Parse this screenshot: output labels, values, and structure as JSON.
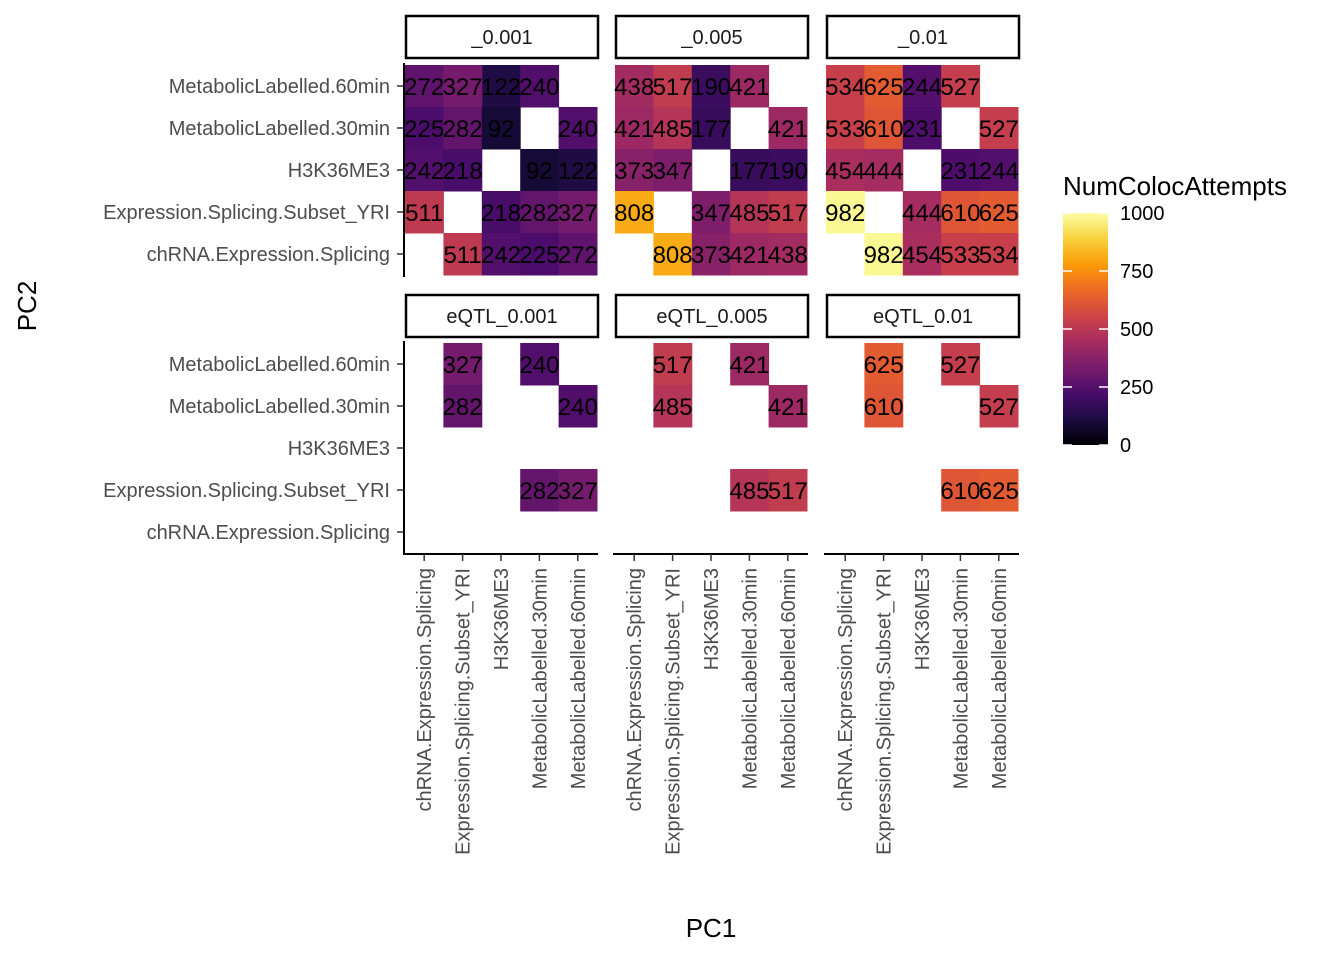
{
  "chart_data": {
    "type": "heatmap",
    "xlabel": "PC1",
    "ylabel": "PC2",
    "categories": [
      "chRNA.Expression.Splicing",
      "Expression.Splicing.Subset_YRI",
      "H3K36ME3",
      "MetabolicLabelled.30min",
      "MetabolicLabelled.60min"
    ],
    "facet_layout": {
      "rows": 2,
      "cols": 3
    },
    "facets": [
      {
        "label": "_0.001",
        "cells": [
          {
            "x": "H3K36ME3",
            "y": "MetabolicLabelled.60min",
            "value": 122
          },
          {
            "x": "MetabolicLabelled.30min",
            "y": "MetabolicLabelled.60min",
            "value": 240
          },
          {
            "x": "chRNA.Expression.Splicing",
            "y": "MetabolicLabelled.60min",
            "value": 272
          },
          {
            "x": "Expression.Splicing.Subset_YRI",
            "y": "MetabolicLabelled.60min",
            "value": 327
          },
          {
            "x": "chRNA.Expression.Splicing",
            "y": "MetabolicLabelled.30min",
            "value": 225
          },
          {
            "x": "Expression.Splicing.Subset_YRI",
            "y": "MetabolicLabelled.30min",
            "value": 282
          },
          {
            "x": "H3K36ME3",
            "y": "MetabolicLabelled.30min",
            "value": 92
          },
          {
            "x": "MetabolicLabelled.60min",
            "y": "MetabolicLabelled.30min",
            "value": 240
          },
          {
            "x": "chRNA.Expression.Splicing",
            "y": "H3K36ME3",
            "value": 242
          },
          {
            "x": "Expression.Splicing.Subset_YRI",
            "y": "H3K36ME3",
            "value": 218
          },
          {
            "x": "MetabolicLabelled.30min",
            "y": "H3K36ME3",
            "value": 92
          },
          {
            "x": "MetabolicLabelled.60min",
            "y": "H3K36ME3",
            "value": 122
          },
          {
            "x": "chRNA.Expression.Splicing",
            "y": "Expression.Splicing.Subset_YRI",
            "value": 511
          },
          {
            "x": "H3K36ME3",
            "y": "Expression.Splicing.Subset_YRI",
            "value": 218
          },
          {
            "x": "MetabolicLabelled.30min",
            "y": "Expression.Splicing.Subset_YRI",
            "value": 282
          },
          {
            "x": "MetabolicLabelled.60min",
            "y": "Expression.Splicing.Subset_YRI",
            "value": 327
          },
          {
            "x": "Expression.Splicing.Subset_YRI",
            "y": "chRNA.Expression.Splicing",
            "value": 511
          },
          {
            "x": "H3K36ME3",
            "y": "chRNA.Expression.Splicing",
            "value": 242
          },
          {
            "x": "MetabolicLabelled.30min",
            "y": "chRNA.Expression.Splicing",
            "value": 225
          },
          {
            "x": "MetabolicLabelled.60min",
            "y": "chRNA.Expression.Splicing",
            "value": 272
          }
        ]
      },
      {
        "label": "_0.005",
        "cells": [
          {
            "x": "chRNA.Expression.Splicing",
            "y": "MetabolicLabelled.60min",
            "value": 438
          },
          {
            "x": "Expression.Splicing.Subset_YRI",
            "y": "MetabolicLabelled.60min",
            "value": 517
          },
          {
            "x": "H3K36ME3",
            "y": "MetabolicLabelled.60min",
            "value": 190
          },
          {
            "x": "MetabolicLabelled.30min",
            "y": "MetabolicLabelled.60min",
            "value": 421
          },
          {
            "x": "chRNA.Expression.Splicing",
            "y": "MetabolicLabelled.30min",
            "value": 421
          },
          {
            "x": "Expression.Splicing.Subset_YRI",
            "y": "MetabolicLabelled.30min",
            "value": 485
          },
          {
            "x": "H3K36ME3",
            "y": "MetabolicLabelled.30min",
            "value": 177
          },
          {
            "x": "MetabolicLabelled.60min",
            "y": "MetabolicLabelled.30min",
            "value": 421
          },
          {
            "x": "chRNA.Expression.Splicing",
            "y": "H3K36ME3",
            "value": 373
          },
          {
            "x": "Expression.Splicing.Subset_YRI",
            "y": "H3K36ME3",
            "value": 347
          },
          {
            "x": "MetabolicLabelled.30min",
            "y": "H3K36ME3",
            "value": 177
          },
          {
            "x": "MetabolicLabelled.60min",
            "y": "H3K36ME3",
            "value": 190
          },
          {
            "x": "chRNA.Expression.Splicing",
            "y": "Expression.Splicing.Subset_YRI",
            "value": 808
          },
          {
            "x": "H3K36ME3",
            "y": "Expression.Splicing.Subset_YRI",
            "value": 347
          },
          {
            "x": "MetabolicLabelled.30min",
            "y": "Expression.Splicing.Subset_YRI",
            "value": 485
          },
          {
            "x": "MetabolicLabelled.60min",
            "y": "Expression.Splicing.Subset_YRI",
            "value": 517
          },
          {
            "x": "Expression.Splicing.Subset_YRI",
            "y": "chRNA.Expression.Splicing",
            "value": 808
          },
          {
            "x": "H3K36ME3",
            "y": "chRNA.Expression.Splicing",
            "value": 373
          },
          {
            "x": "MetabolicLabelled.30min",
            "y": "chRNA.Expression.Splicing",
            "value": 421
          },
          {
            "x": "MetabolicLabelled.60min",
            "y": "chRNA.Expression.Splicing",
            "value": 438
          }
        ]
      },
      {
        "label": "_0.01",
        "cells": [
          {
            "x": "chRNA.Expression.Splicing",
            "y": "MetabolicLabelled.60min",
            "value": 534
          },
          {
            "x": "Expression.Splicing.Subset_YRI",
            "y": "MetabolicLabelled.60min",
            "value": 625
          },
          {
            "x": "H3K36ME3",
            "y": "MetabolicLabelled.60min",
            "value": 244
          },
          {
            "x": "MetabolicLabelled.30min",
            "y": "MetabolicLabelled.60min",
            "value": 527
          },
          {
            "x": "chRNA.Expression.Splicing",
            "y": "MetabolicLabelled.30min",
            "value": 533
          },
          {
            "x": "Expression.Splicing.Subset_YRI",
            "y": "MetabolicLabelled.30min",
            "value": 610
          },
          {
            "x": "H3K36ME3",
            "y": "MetabolicLabelled.30min",
            "value": 231
          },
          {
            "x": "MetabolicLabelled.60min",
            "y": "MetabolicLabelled.30min",
            "value": 527
          },
          {
            "x": "chRNA.Expression.Splicing",
            "y": "H3K36ME3",
            "value": 454
          },
          {
            "x": "Expression.Splicing.Subset_YRI",
            "y": "H3K36ME3",
            "value": 444
          },
          {
            "x": "MetabolicLabelled.30min",
            "y": "H3K36ME3",
            "value": 231
          },
          {
            "x": "MetabolicLabelled.60min",
            "y": "H3K36ME3",
            "value": 244
          },
          {
            "x": "chRNA.Expression.Splicing",
            "y": "Expression.Splicing.Subset_YRI",
            "value": 982
          },
          {
            "x": "H3K36ME3",
            "y": "Expression.Splicing.Subset_YRI",
            "value": 444
          },
          {
            "x": "MetabolicLabelled.30min",
            "y": "Expression.Splicing.Subset_YRI",
            "value": 610
          },
          {
            "x": "MetabolicLabelled.60min",
            "y": "Expression.Splicing.Subset_YRI",
            "value": 625
          },
          {
            "x": "Expression.Splicing.Subset_YRI",
            "y": "chRNA.Expression.Splicing",
            "value": 982
          },
          {
            "x": "H3K36ME3",
            "y": "chRNA.Expression.Splicing",
            "value": 454
          },
          {
            "x": "MetabolicLabelled.30min",
            "y": "chRNA.Expression.Splicing",
            "value": 533
          },
          {
            "x": "MetabolicLabelled.60min",
            "y": "chRNA.Expression.Splicing",
            "value": 534
          }
        ]
      },
      {
        "label": "eQTL_0.001",
        "cells": [
          {
            "x": "Expression.Splicing.Subset_YRI",
            "y": "MetabolicLabelled.60min",
            "value": 327
          },
          {
            "x": "MetabolicLabelled.30min",
            "y": "MetabolicLabelled.60min",
            "value": 240
          },
          {
            "x": "Expression.Splicing.Subset_YRI",
            "y": "MetabolicLabelled.30min",
            "value": 282
          },
          {
            "x": "MetabolicLabelled.60min",
            "y": "MetabolicLabelled.30min",
            "value": 240
          },
          {
            "x": "MetabolicLabelled.30min",
            "y": "Expression.Splicing.Subset_YRI",
            "value": 282
          },
          {
            "x": "MetabolicLabelled.60min",
            "y": "Expression.Splicing.Subset_YRI",
            "value": 327
          }
        ]
      },
      {
        "label": "eQTL_0.005",
        "cells": [
          {
            "x": "Expression.Splicing.Subset_YRI",
            "y": "MetabolicLabelled.60min",
            "value": 517
          },
          {
            "x": "MetabolicLabelled.30min",
            "y": "MetabolicLabelled.60min",
            "value": 421
          },
          {
            "x": "Expression.Splicing.Subset_YRI",
            "y": "MetabolicLabelled.30min",
            "value": 485
          },
          {
            "x": "MetabolicLabelled.60min",
            "y": "MetabolicLabelled.30min",
            "value": 421
          },
          {
            "x": "MetabolicLabelled.30min",
            "y": "Expression.Splicing.Subset_YRI",
            "value": 485
          },
          {
            "x": "MetabolicLabelled.60min",
            "y": "Expression.Splicing.Subset_YRI",
            "value": 517
          }
        ]
      },
      {
        "label": "eQTL_0.01",
        "cells": [
          {
            "x": "Expression.Splicing.Subset_YRI",
            "y": "MetabolicLabelled.60min",
            "value": 625
          },
          {
            "x": "MetabolicLabelled.30min",
            "y": "MetabolicLabelled.60min",
            "value": 527
          },
          {
            "x": "Expression.Splicing.Subset_YRI",
            "y": "MetabolicLabelled.30min",
            "value": 610
          },
          {
            "x": "MetabolicLabelled.60min",
            "y": "MetabolicLabelled.30min",
            "value": 527
          },
          {
            "x": "MetabolicLabelled.30min",
            "y": "Expression.Splicing.Subset_YRI",
            "value": 610
          },
          {
            "x": "MetabolicLabelled.60min",
            "y": "Expression.Splicing.Subset_YRI",
            "value": 625
          }
        ]
      }
    ],
    "legend": {
      "title": "NumColocAttempts",
      "placement": "right",
      "colorscale": "inferno",
      "range": [
        0,
        1000
      ],
      "ticks": [
        0,
        250,
        500,
        750,
        1000
      ],
      "colors": [
        "#000004",
        "#1b0c41",
        "#4a0c6b",
        "#781c6d",
        "#a52c60",
        "#cf4446",
        "#ed6925",
        "#fb9b06",
        "#f7d13d",
        "#fcffa4"
      ]
    },
    "grid": false
  }
}
